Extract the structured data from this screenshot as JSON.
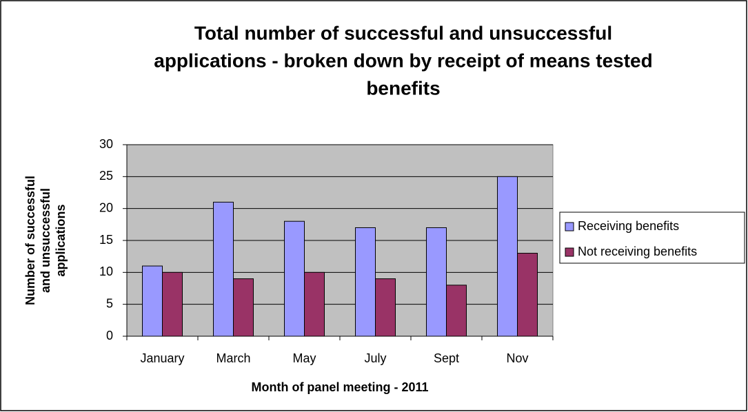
{
  "chart_data": {
    "type": "bar",
    "title": [
      "Total number of successful and unsuccessful",
      "applications - broken down by receipt of means tested",
      "benefits"
    ],
    "y_label": [
      "Number of successful",
      "and unsuccessful",
      "applications"
    ],
    "x_label": "Month of panel meeting - 2011",
    "categories": [
      "January",
      "March",
      "May",
      "July",
      "Sept",
      "Nov"
    ],
    "series": [
      {
        "name": "Receiving benefits",
        "color": "#9999ff",
        "values": [
          11,
          21,
          18,
          17,
          17,
          25
        ]
      },
      {
        "name": "Not receiving benefits",
        "color": "#993366",
        "values": [
          10,
          9,
          10,
          9,
          8,
          13
        ]
      }
    ],
    "ylim": [
      0,
      30
    ],
    "yticks": [
      0,
      5,
      10,
      15,
      20,
      25,
      30
    ],
    "grid": true,
    "legend": "right"
  }
}
